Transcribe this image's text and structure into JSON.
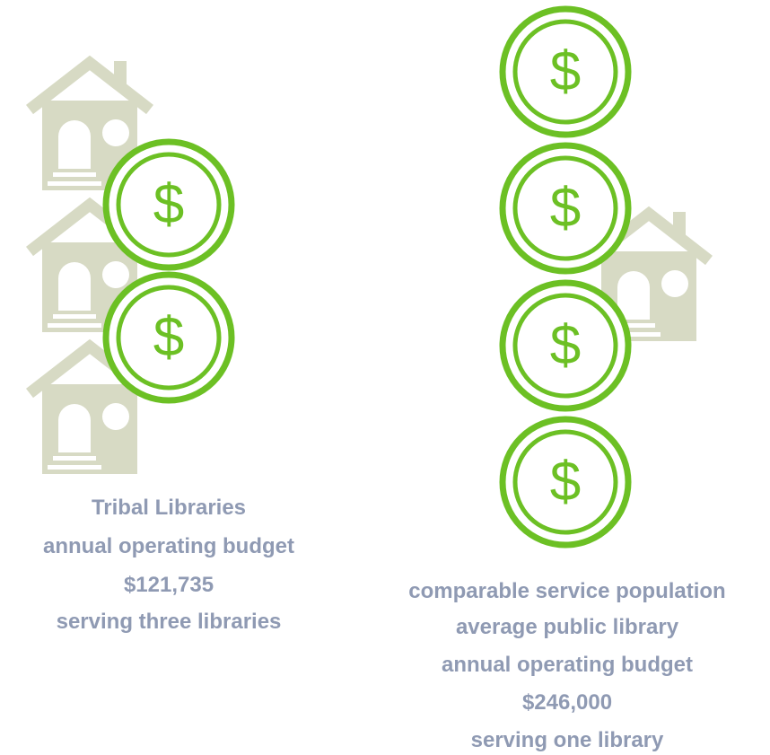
{
  "coin_symbol": "$",
  "left": {
    "lines": [
      "Tribal Libraries",
      "annual operating budget",
      "$121,735",
      "serving three libraries"
    ]
  },
  "right": {
    "lines": [
      "comparable service population",
      "average public library",
      "annual operating budget",
      "$246,000",
      "serving one library"
    ]
  }
}
